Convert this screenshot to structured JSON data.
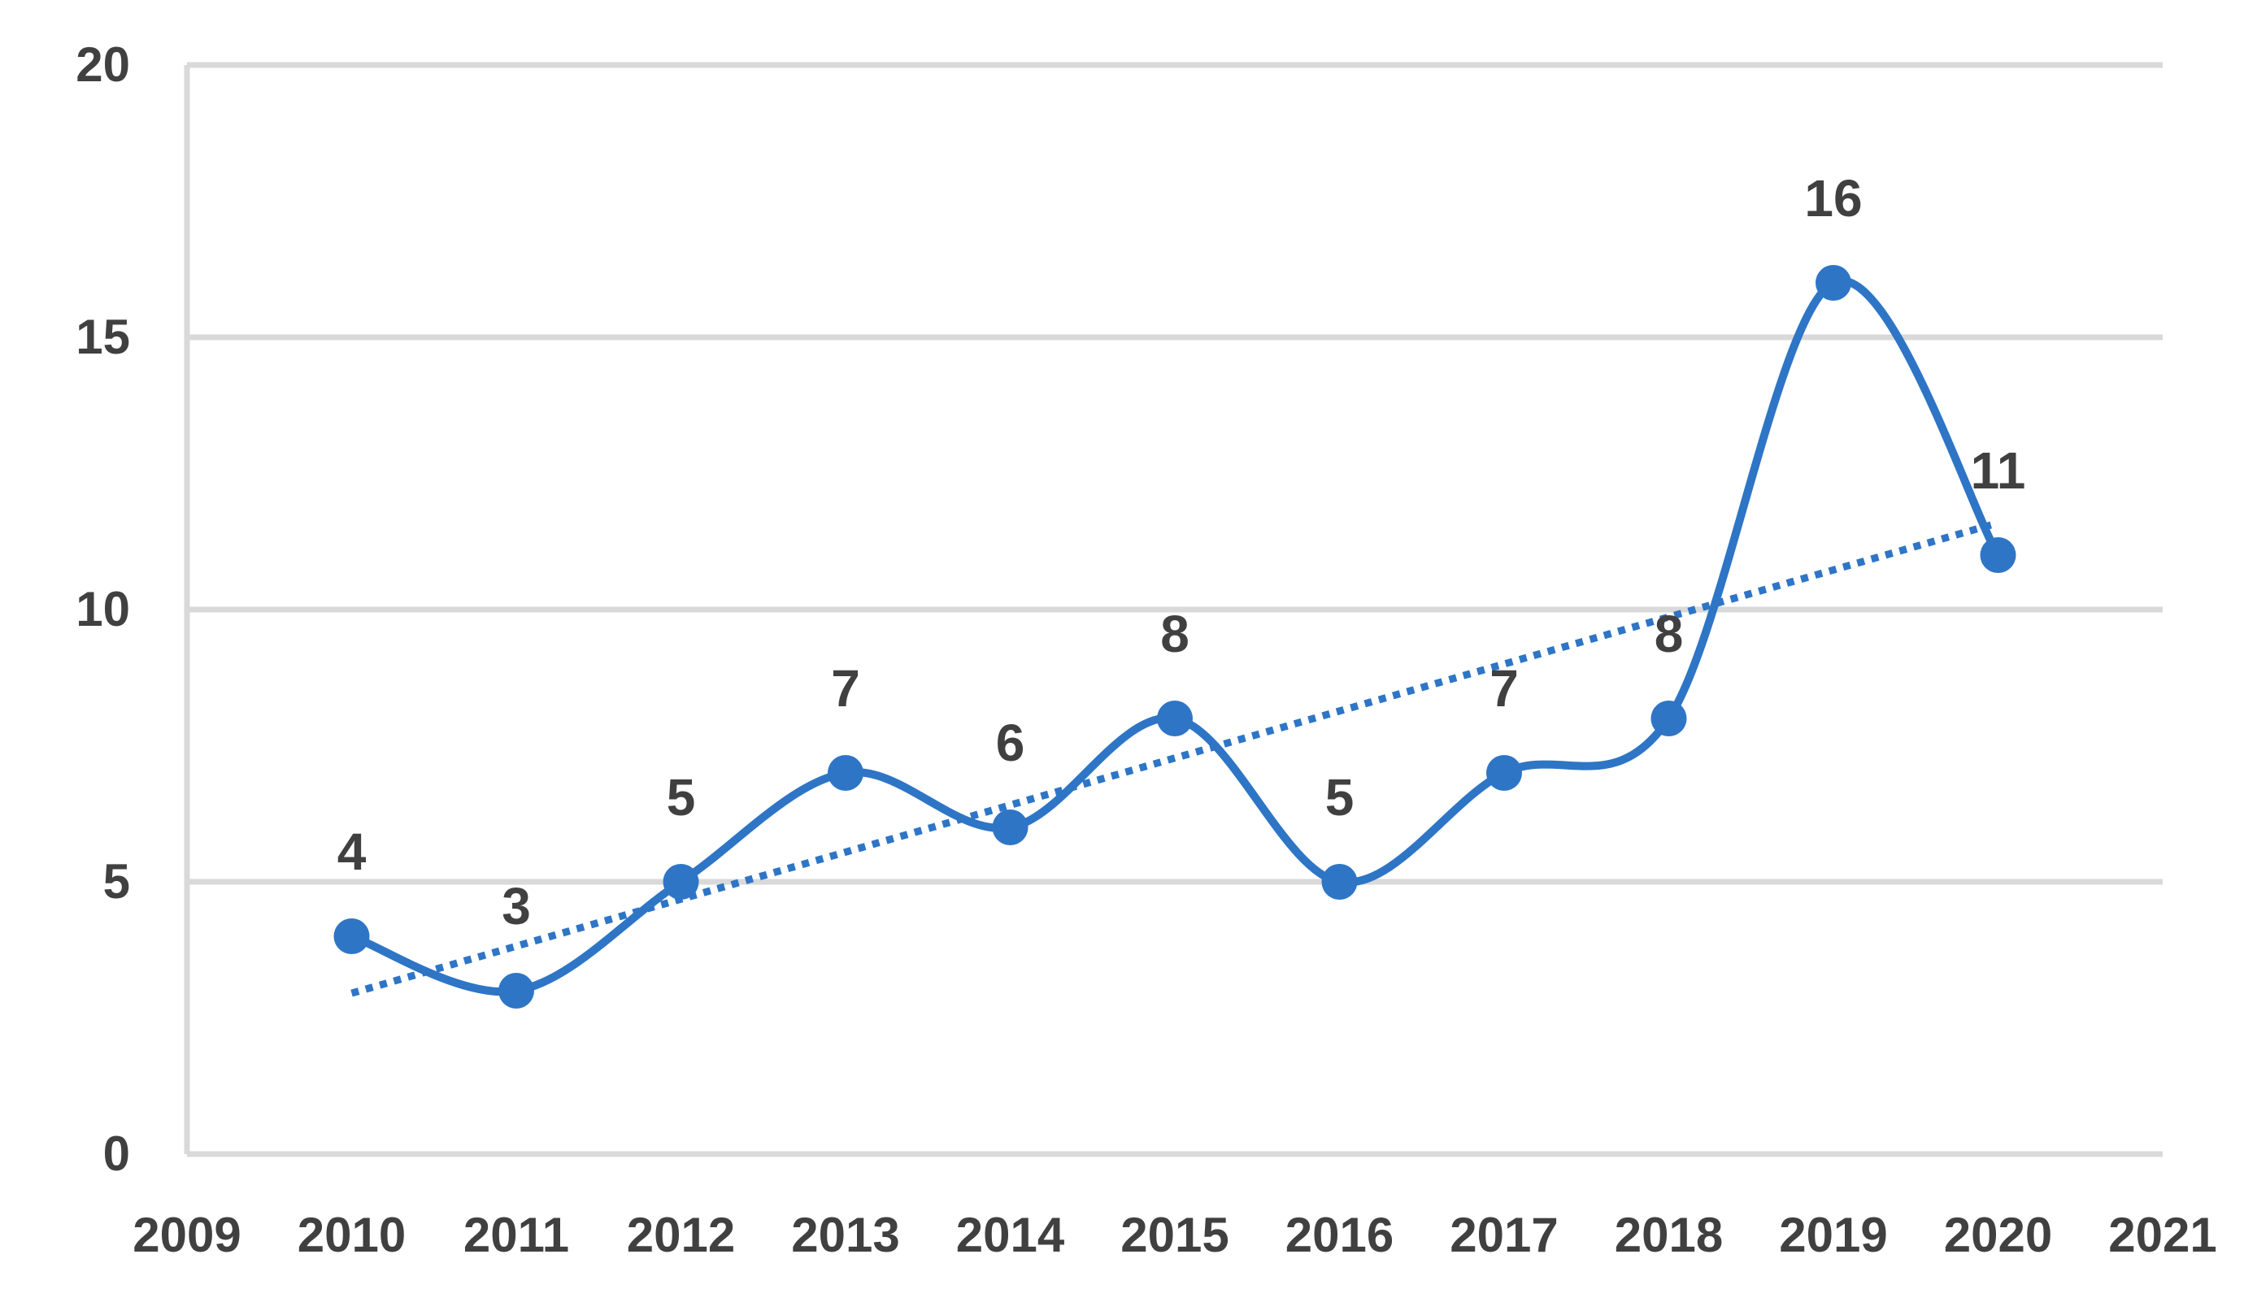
{
  "chart_data": {
    "type": "line",
    "title": "",
    "xlabel": "",
    "ylabel": "",
    "x": [
      2010,
      2011,
      2012,
      2013,
      2014,
      2015,
      2016,
      2017,
      2018,
      2019,
      2020
    ],
    "series": [
      {
        "values": [
          4,
          3,
          5,
          7,
          6,
          8,
          5,
          7,
          8,
          16,
          11
        ],
        "color": "#2E75C6",
        "smooth": true,
        "markers": true,
        "data_labels": true
      }
    ],
    "trendline": {
      "type": "linear",
      "style": "dotted",
      "color": "#2E75C6"
    },
    "xlim": [
      2009,
      2021
    ],
    "ylim": [
      0,
      20
    ],
    "xticks": [
      "2009",
      "2010",
      "2011",
      "2012",
      "2013",
      "2014",
      "2015",
      "2016",
      "2017",
      "2018",
      "2019",
      "2020",
      "2021"
    ],
    "yticks": [
      "0",
      "5",
      "10",
      "15",
      "20"
    ],
    "grid": "horizontal",
    "legend": "none",
    "colors": {
      "series": "#2E75C6",
      "gridline": "#D9D9D9",
      "axis": "#D9D9D9",
      "text": "#404040"
    }
  }
}
